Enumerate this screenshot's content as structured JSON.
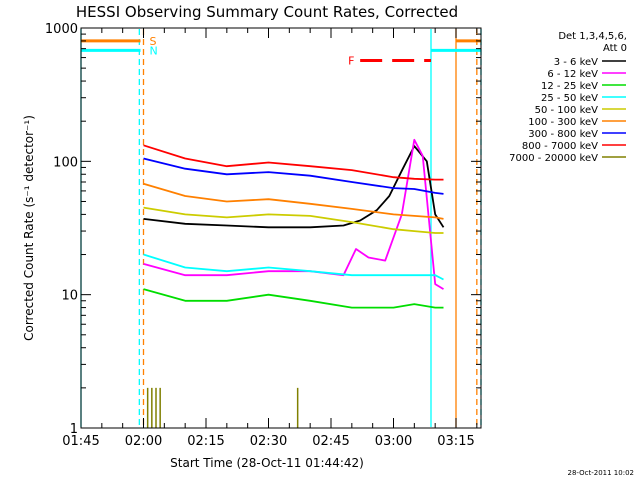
{
  "chart_data": {
    "type": "line",
    "title": "HESSI Observing Summary Count Rates, Corrected",
    "xlabel": "Start Time (28-Oct-11 01:44:42)",
    "ylabel": "Corrected Count Rate (s⁻¹ detector⁻¹)",
    "yscale": "log",
    "ylim": [
      1,
      1000
    ],
    "xlim": [
      "01:45",
      "03:21"
    ],
    "x_ticks": [
      "01:45",
      "02:00",
      "02:15",
      "02:30",
      "02:45",
      "03:00",
      "03:15"
    ],
    "y_ticks": [
      "1",
      "10",
      "100",
      "1000"
    ],
    "legend_header": [
      "Det 1,3,4,5,6,",
      "Att 0"
    ],
    "legend_position": "right",
    "timestamp": "28-Oct-2011 10:02",
    "series": [
      {
        "name": "3 - 6 keV",
        "color": "#000000",
        "x": [
          "02:00",
          "02:10",
          "02:20",
          "02:30",
          "02:40",
          "02:48",
          "02:52",
          "02:56",
          "02:59",
          "03:02",
          "03:05",
          "03:08",
          "03:10",
          "03:12"
        ],
        "y": [
          37,
          34,
          33,
          32,
          32,
          33,
          36,
          43,
          55,
          85,
          130,
          100,
          40,
          32
        ]
      },
      {
        "name": "6 - 12 keV",
        "color": "#ff00ff",
        "x": [
          "02:00",
          "02:10",
          "02:20",
          "02:30",
          "02:40",
          "02:48",
          "02:51",
          "02:54",
          "02:58",
          "03:02",
          "03:05",
          "03:07",
          "03:10",
          "03:12"
        ],
        "y": [
          17,
          14,
          14,
          15,
          15,
          14,
          22,
          19,
          18,
          40,
          145,
          110,
          12,
          11
        ]
      },
      {
        "name": "12 - 25 keV",
        "color": "#00dd00",
        "x": [
          "02:00",
          "02:10",
          "02:20",
          "02:30",
          "02:40",
          "02:50",
          "03:00",
          "03:05",
          "03:10",
          "03:12"
        ],
        "y": [
          11,
          9,
          9,
          10,
          9,
          8,
          8,
          8.5,
          8,
          8
        ]
      },
      {
        "name": "25 - 50 keV",
        "color": "#00ffff",
        "x": [
          "02:00",
          "02:10",
          "02:20",
          "02:30",
          "02:40",
          "02:50",
          "03:00",
          "03:05",
          "03:10",
          "03:12"
        ],
        "y": [
          20,
          16,
          15,
          16,
          15,
          14,
          14,
          14,
          14,
          13
        ]
      },
      {
        "name": "50 - 100 keV",
        "color": "#cccc00",
        "x": [
          "02:00",
          "02:10",
          "02:20",
          "02:30",
          "02:40",
          "02:50",
          "03:00",
          "03:05",
          "03:10",
          "03:12"
        ],
        "y": [
          45,
          40,
          38,
          40,
          39,
          35,
          31,
          30,
          29,
          29
        ]
      },
      {
        "name": "100 - 300 keV",
        "color": "#ff8000",
        "x": [
          "02:00",
          "02:10",
          "02:20",
          "02:30",
          "02:40",
          "02:50",
          "03:00",
          "03:05",
          "03:10",
          "03:12"
        ],
        "y": [
          68,
          55,
          50,
          52,
          48,
          44,
          40,
          39,
          38,
          37
        ]
      },
      {
        "name": "300 - 800 keV",
        "color": "#0000ff",
        "x": [
          "02:00",
          "02:10",
          "02:20",
          "02:30",
          "02:40",
          "02:50",
          "03:00",
          "03:05",
          "03:10",
          "03:12"
        ],
        "y": [
          105,
          88,
          80,
          83,
          78,
          70,
          63,
          62,
          58,
          57
        ]
      },
      {
        "name": "800 - 7000 keV",
        "color": "#ff0000",
        "x": [
          "02:00",
          "02:10",
          "02:20",
          "02:30",
          "02:40",
          "02:50",
          "03:00",
          "03:05",
          "03:10",
          "03:12"
        ],
        "y": [
          132,
          105,
          92,
          98,
          92,
          86,
          76,
          74,
          73,
          73
        ]
      },
      {
        "name": "7000 - 20000 keV",
        "color": "#808000",
        "x": [
          "02:01",
          "02:02",
          "02:03",
          "02:04",
          "02:37"
        ],
        "y": [
          2,
          2,
          2,
          2,
          2
        ]
      }
    ],
    "annotations": [
      {
        "label": "S",
        "color": "#ff8000",
        "x_start": "01:45",
        "x_end": "02:00",
        "x_resume": "03:15",
        "x_stop": "03:21",
        "y": 800
      },
      {
        "label": "N",
        "color": "#00ffff",
        "x_start": "01:45",
        "x_end": "02:00",
        "x_resume": "03:09",
        "x_stop": "03:21",
        "y": 680
      },
      {
        "label": "F",
        "color": "#ff0000",
        "x_start": "02:52",
        "x_end": "03:09",
        "y": 570
      }
    ],
    "vertical_markers": [
      {
        "x": "01:45",
        "color": "#00ffff",
        "style": "solid"
      },
      {
        "x": "01:59",
        "color": "#00ffff",
        "style": "dashed"
      },
      {
        "x": "02:00",
        "color": "#ff8000",
        "style": "dashed"
      },
      {
        "x": "03:09",
        "color": "#00ffff",
        "style": "solid"
      },
      {
        "x": "03:15",
        "color": "#ff8000",
        "style": "solid"
      },
      {
        "x": "03:21",
        "color": "#00ffff",
        "style": "dashed"
      },
      {
        "x": "03:20",
        "color": "#ff8000",
        "style": "dashed"
      }
    ],
    "grid": false
  }
}
